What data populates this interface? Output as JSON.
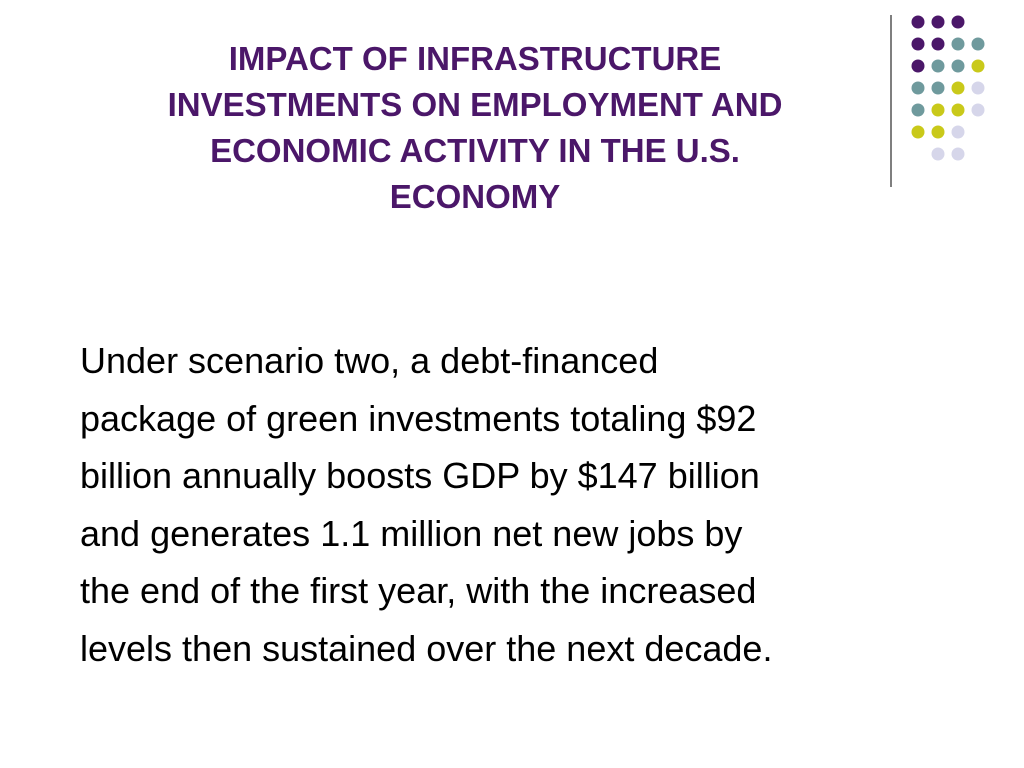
{
  "slide": {
    "title_lines": [
      "IMPACT OF INFRASTRUCTURE",
      "INVESTMENTS ON EMPLOYMENT AND",
      "ECONOMIC ACTIVITY IN THE U.S.",
      "ECONOMY"
    ],
    "body_lines": [
      "Under scenario two, a debt-financed",
      "package of green investments totaling $92",
      "billion annually boosts GDP by $147 billion",
      "and generates 1.1 million net new jobs by",
      "the end of the first year, with the increased",
      "levels then sustained over the next decade."
    ]
  }
}
